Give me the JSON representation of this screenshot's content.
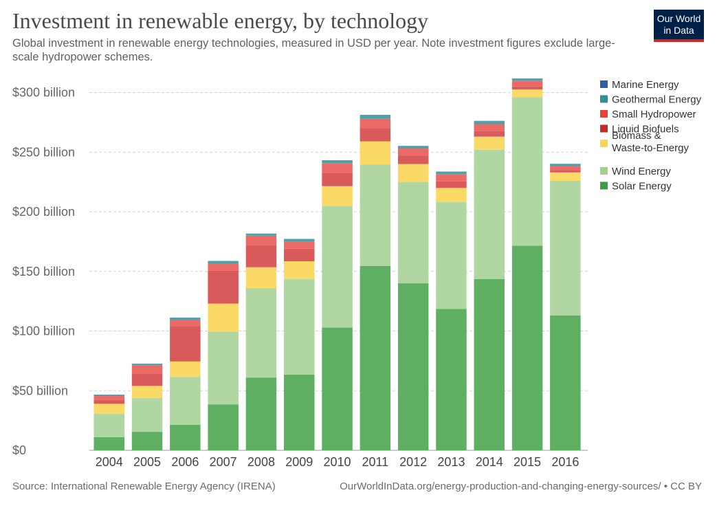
{
  "header": {
    "title": "Investment in renewable energy, by technology",
    "subtitle": "Global investment in renewable energy technologies, measured in USD per year. Note investment figures exclude large-scale hydropower schemes."
  },
  "logo": {
    "line1": "Our World",
    "line2": "in Data"
  },
  "footer": {
    "source": "Source: International Renewable Energy Agency (IRENA)",
    "url": "OurWorldInData.org/energy-production-and-changing-energy-sources/ • CC BY"
  },
  "chart_data": {
    "type": "bar",
    "stacked": true,
    "categories": [
      "2004",
      "2005",
      "2006",
      "2007",
      "2008",
      "2009",
      "2010",
      "2011",
      "2012",
      "2013",
      "2014",
      "2015",
      "2016"
    ],
    "ylim": [
      0,
      310
    ],
    "yticks": [
      0,
      50,
      100,
      150,
      200,
      250,
      300
    ],
    "ytick_labels": [
      "$0",
      "$50 billion",
      "$100 billion",
      "$150 billion",
      "$200 billion",
      "$250 billion",
      "$300 billion"
    ],
    "grid": true,
    "legend_position": "right",
    "series": [
      {
        "name": "Solar Energy",
        "color": "#5eaf62",
        "values": [
          11,
          15.5,
          21.5,
          38.5,
          61,
          63.5,
          103,
          154.5,
          140,
          118.5,
          143.5,
          171.5,
          113
        ]
      },
      {
        "name": "Wind Energy",
        "color": "#b0d6a2",
        "values": [
          19.5,
          28.5,
          40,
          61,
          75,
          80,
          102,
          85,
          85,
          89.5,
          108.5,
          124.5,
          113
        ]
      },
      {
        "name": "Biomass & Waste-to-Energy",
        "color": "#fbd966",
        "values": [
          8.5,
          10,
          13,
          23.5,
          17.5,
          15,
          16.5,
          19.5,
          15,
          12,
          11,
          6.5,
          7
        ]
      },
      {
        "name": "Liquid Biofuels",
        "color": "#d85a5a",
        "values": [
          3.5,
          10,
          29.5,
          27.5,
          18.5,
          10.5,
          11,
          11,
          7,
          5.5,
          4.5,
          2.5,
          2
        ]
      },
      {
        "name": "Small Hydropower",
        "color": "#ec6a66",
        "values": [
          3,
          7,
          5.5,
          6,
          8,
          6,
          8,
          8,
          6,
          6,
          6,
          5,
          3
        ]
      },
      {
        "name": "Geothermal Energy",
        "color": "#4fa1a8",
        "values": [
          1,
          1.5,
          1.5,
          2,
          1.5,
          2,
          2.5,
          3,
          2,
          2,
          2.5,
          1.5,
          2
        ]
      },
      {
        "name": "Marine Energy",
        "color": "#3a6fb0",
        "values": [
          0.2,
          0.2,
          0.2,
          0.2,
          0.2,
          0.2,
          0.2,
          0.2,
          0.2,
          0.2,
          0.2,
          0.2,
          0.2
        ]
      }
    ],
    "legend": [
      {
        "name": "Marine Energy",
        "color": "#2e5fa6"
      },
      {
        "name": "Geothermal Energy",
        "color": "#2f8f98"
      },
      {
        "name": "Small Hydropower",
        "color": "#e8403b"
      },
      {
        "name": "Liquid Biofuels",
        "color": "#c8282a"
      },
      {
        "name": "Biomass & Waste-to-Energy",
        "color": "#fcd64a"
      },
      {
        "name": "Wind Energy",
        "color": "#a3cf91"
      },
      {
        "name": "Solar Energy",
        "color": "#3a9e44"
      }
    ]
  }
}
